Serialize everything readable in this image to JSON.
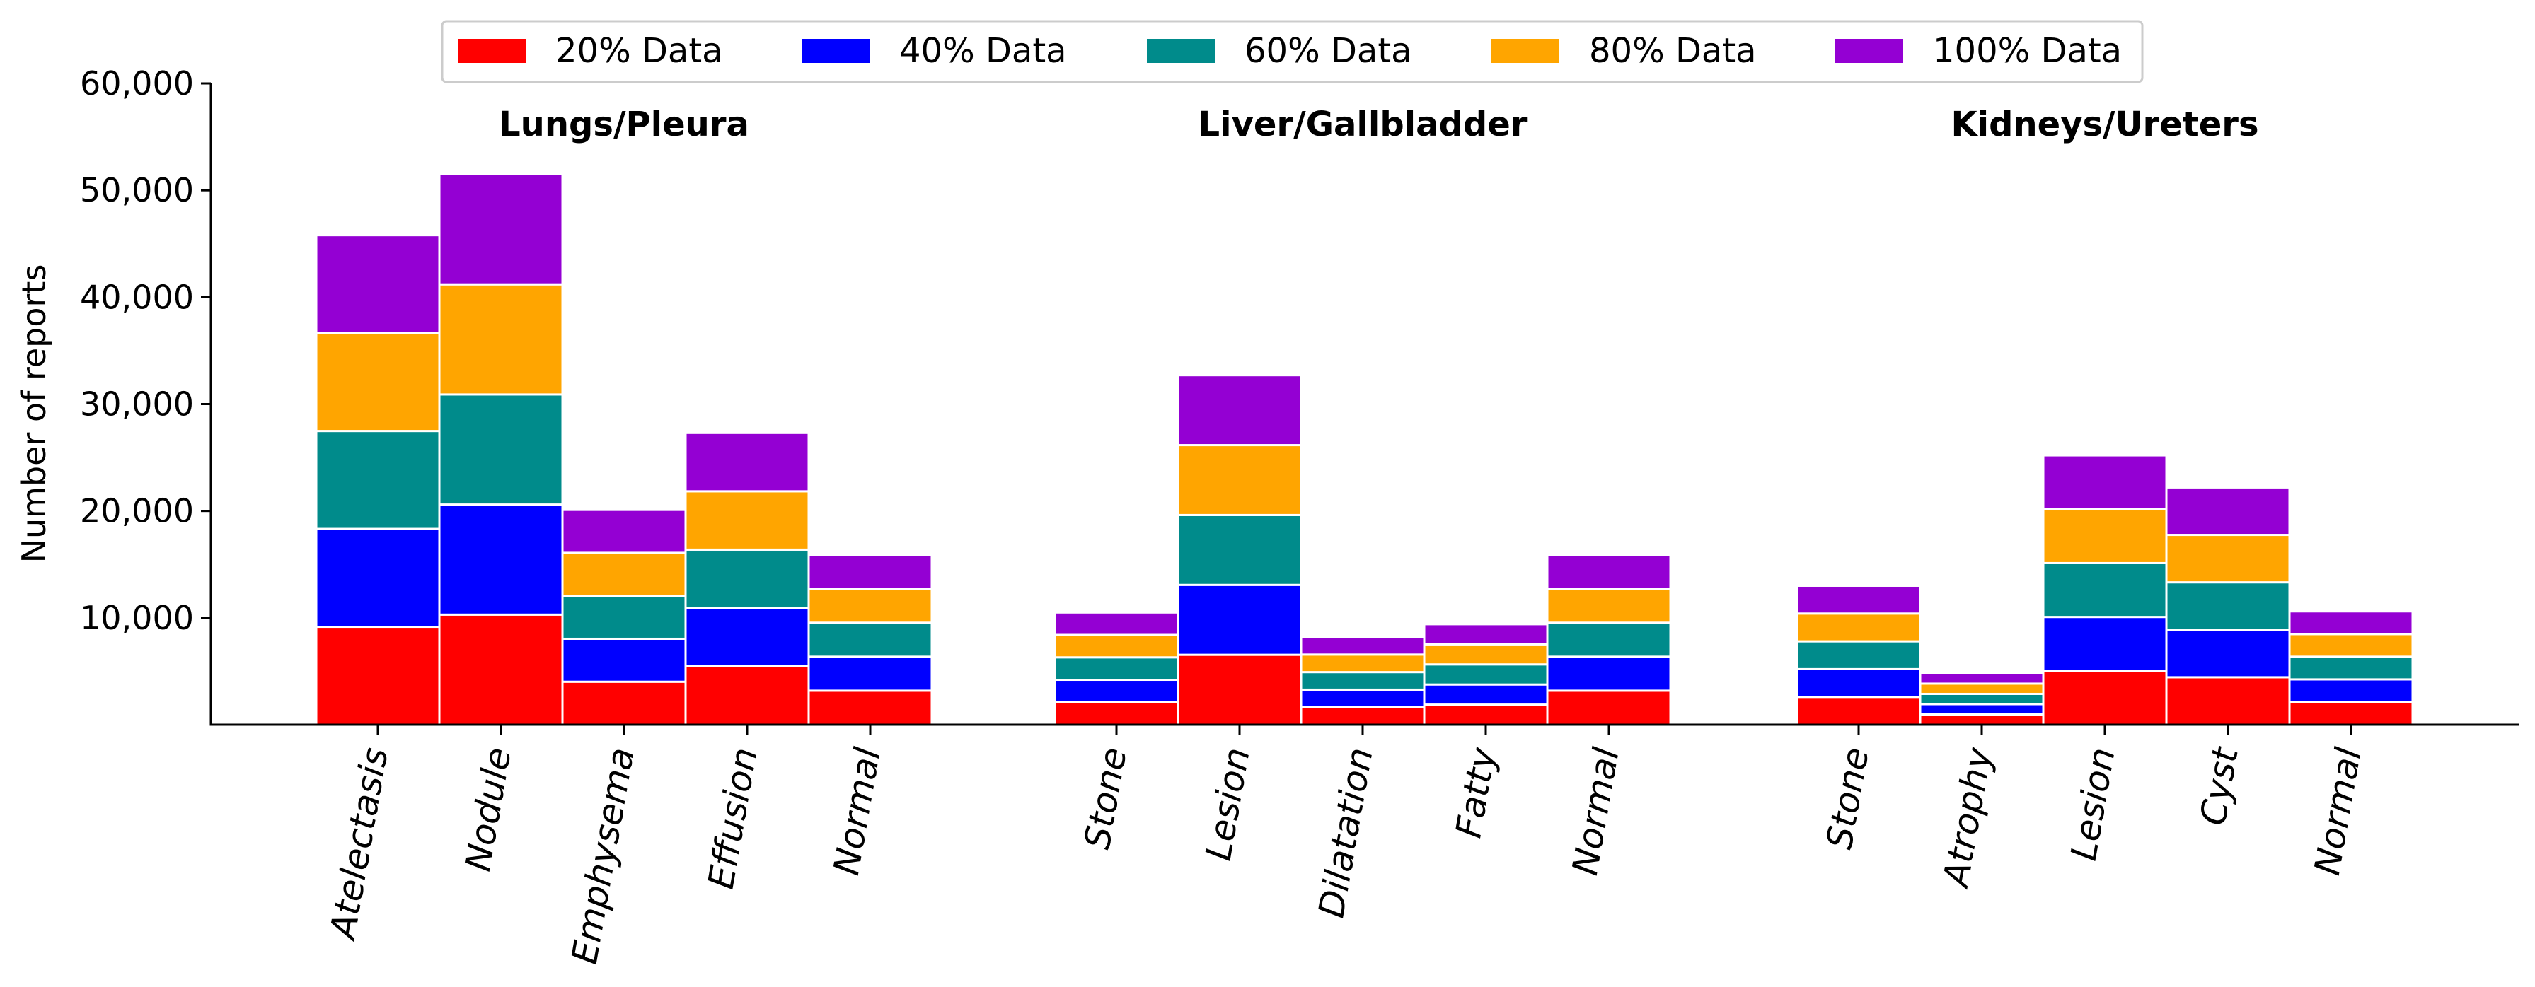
{
  "chart_data": {
    "type": "bar",
    "stacked": true,
    "ylabel": "Number of reports",
    "ylim": [
      0,
      60000
    ],
    "yticks": [
      "10,000",
      "20,000",
      "30,000",
      "40,000",
      "50,000",
      "60,000"
    ],
    "ytick_values": [
      10000,
      20000,
      30000,
      40000,
      50000,
      60000
    ],
    "legend_position": "top-center",
    "grid": false,
    "series": [
      {
        "name": "20% Data",
        "color": "#ff0000"
      },
      {
        "name": "40% Data",
        "color": "#0000ff"
      },
      {
        "name": "60% Data",
        "color": "#008b8b"
      },
      {
        "name": "80% Data",
        "color": "#ffa500"
      },
      {
        "name": "100% Data",
        "color": "#9400d3"
      }
    ],
    "groups": [
      {
        "title": "Lungs/Pleura",
        "categories": [
          "Atelectasis",
          "Nodule",
          "Emphysema",
          "Effusion",
          "Normal"
        ],
        "totals": [
          45800,
          51500,
          20100,
          27300,
          15900
        ]
      },
      {
        "title": "Liver/Gallbladder",
        "categories": [
          "Stone",
          "Lesion",
          "Dilatation",
          "Fatty",
          "Normal"
        ],
        "totals": [
          10500,
          32700,
          8200,
          9400,
          15900
        ]
      },
      {
        "title": "Kidneys/Ureters",
        "categories": [
          "Stone",
          "Atrophy",
          "Lesion",
          "Cyst",
          "Normal"
        ],
        "totals": [
          13000,
          4800,
          25200,
          22200,
          10600
        ]
      }
    ]
  }
}
